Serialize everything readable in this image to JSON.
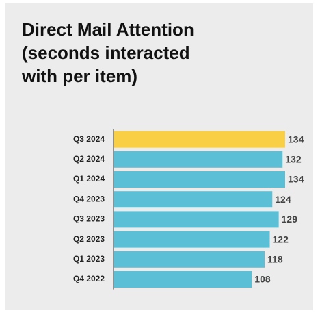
{
  "chart_data": {
    "type": "hbar",
    "title": "Direct Mail Attention (seconds interacted with per item)",
    "categories": [
      "Q3 2024",
      "Q2 2024",
      "Q1 2024",
      "Q4 2023",
      "Q3 2023",
      "Q2 2023",
      "Q1 2023",
      "Q4 2022"
    ],
    "values": [
      134,
      132,
      134,
      124,
      129,
      122,
      118,
      108
    ],
    "colors": [
      "#f9cf45",
      "#5bbfd6",
      "#5bbfd6",
      "#5bbfd6",
      "#5bbfd6",
      "#5bbfd6",
      "#5bbfd6",
      "#5bbfd6"
    ]
  }
}
